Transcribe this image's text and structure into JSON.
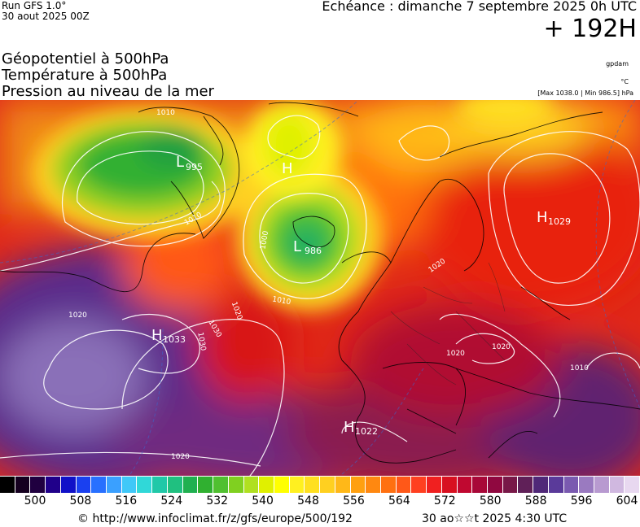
{
  "header": {
    "run": "Run GFS 1.0°",
    "run_date": "30 aout 2025 00Z",
    "echeance": "Echéance : dimanche 7 septembre 2025 0h UTC",
    "lead_time": "+ 192H",
    "param1": "Géopotentiel à 500hPa",
    "param2": "Température à 500hPa",
    "param3": "Pression au niveau de la mer",
    "source_tag": "gpdam",
    "unit_temp": "°C",
    "extremes": "[Max 1038.0 | Min 986.5] hPa"
  },
  "pressure_centers": [
    {
      "type": "H",
      "value": "1033"
    },
    {
      "type": "L",
      "value": "986"
    },
    {
      "type": "L",
      "value": "995"
    },
    {
      "type": "H",
      "value": ""
    },
    {
      "type": "H",
      "value": "1029"
    },
    {
      "type": "H",
      "value": "1022"
    }
  ],
  "isobar_labels": [
    "1010",
    "1020",
    "1030",
    "1000",
    "1010",
    "1020",
    "1020",
    "1020",
    "1020",
    "1010",
    "1010",
    "1030",
    "1020"
  ],
  "colorbar": {
    "colors": [
      "#000000",
      "#15001f",
      "#200040",
      "#20008a",
      "#1010c8",
      "#1a40f0",
      "#2870ff",
      "#3aa0ff",
      "#40c8f8",
      "#30d8d8",
      "#20c8a8",
      "#20c080",
      "#20b050",
      "#30b030",
      "#50c030",
      "#80d020",
      "#b0e020",
      "#e0f000",
      "#ffff00",
      "#fff020",
      "#ffe020",
      "#ffd020",
      "#ffb818",
      "#ffa010",
      "#ff8810",
      "#ff7010",
      "#ff5818",
      "#ff4020",
      "#f02020",
      "#d81020",
      "#c00830",
      "#a80838",
      "#900840",
      "#781848",
      "#602058",
      "#502878",
      "#5a3a9a",
      "#7a5ab0",
      "#9a7ac0",
      "#b89ad0",
      "#d0b8e0",
      "#e8d8f0"
    ],
    "ticks": [
      "500",
      "508",
      "516",
      "524",
      "532",
      "540",
      "548",
      "556",
      "564",
      "572",
      "580",
      "588",
      "596",
      "604"
    ]
  },
  "footer": {
    "copyright": "© http://www.infoclimat.fr/z/gfs/europe/500/192",
    "run_time": "30 ao☆☆t 2025  4:30 UTC"
  }
}
